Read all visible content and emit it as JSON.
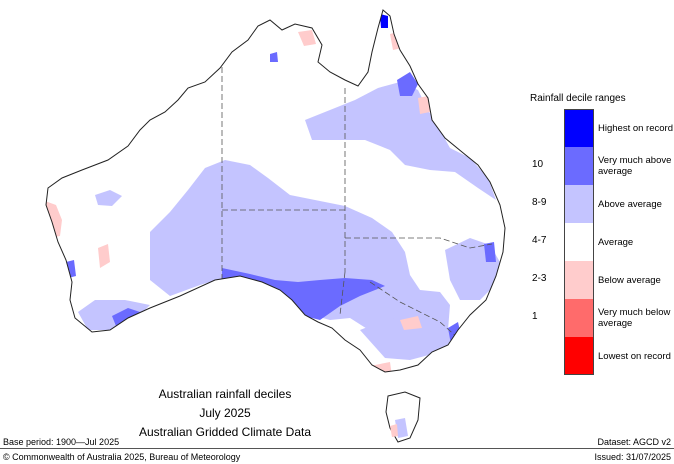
{
  "map": {
    "title": {
      "line1": "Australian rainfall deciles",
      "line2": "July 2025",
      "line3": "Australian Gridded Climate Data"
    },
    "legend": {
      "title": "Rainfall decile ranges",
      "items": [
        {
          "range": "",
          "label": "Highest on record",
          "color": "#0000ff"
        },
        {
          "range": "10",
          "label": "Very much above average",
          "color": "#6b6bff"
        },
        {
          "range": "8-9",
          "label": "Above average",
          "color": "#c4c4ff"
        },
        {
          "range": "4-7",
          "label": "Average",
          "color": "#ffffff"
        },
        {
          "range": "2-3",
          "label": "Below average",
          "color": "#ffcccc"
        },
        {
          "range": "1",
          "label": "Very much below average",
          "color": "#ff6b6b"
        },
        {
          "range": "",
          "label": "Lowest on record",
          "color": "#ff0000"
        }
      ]
    },
    "footer": {
      "base_period": "Base period: 1900—Jul 2025",
      "dataset": "Dataset: AGCD v2",
      "copyright": "© Commonwealth of Australia 2025, Bureau of Meteorology",
      "issued": "Issued: 31/07/2025"
    },
    "colors": {
      "above_average": "#c4c4ff",
      "very_much_above": "#6b6bff",
      "highest": "#0000ff",
      "below_average": "#ffcccc",
      "very_much_below": "#ff6b6b",
      "lowest": "#ff0000",
      "outline": "#222222",
      "state_border": "#555555"
    }
  }
}
